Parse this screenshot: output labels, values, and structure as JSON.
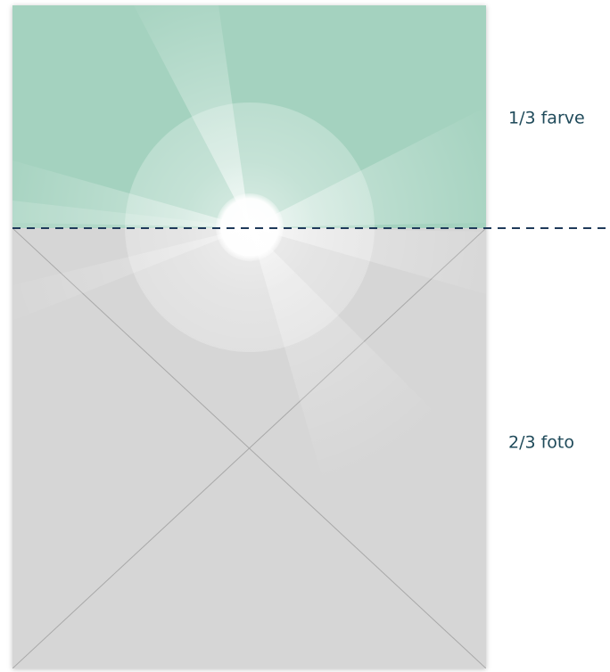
{
  "labels": {
    "top": "1/3 farve",
    "bottom": "2/3 foto"
  }
}
